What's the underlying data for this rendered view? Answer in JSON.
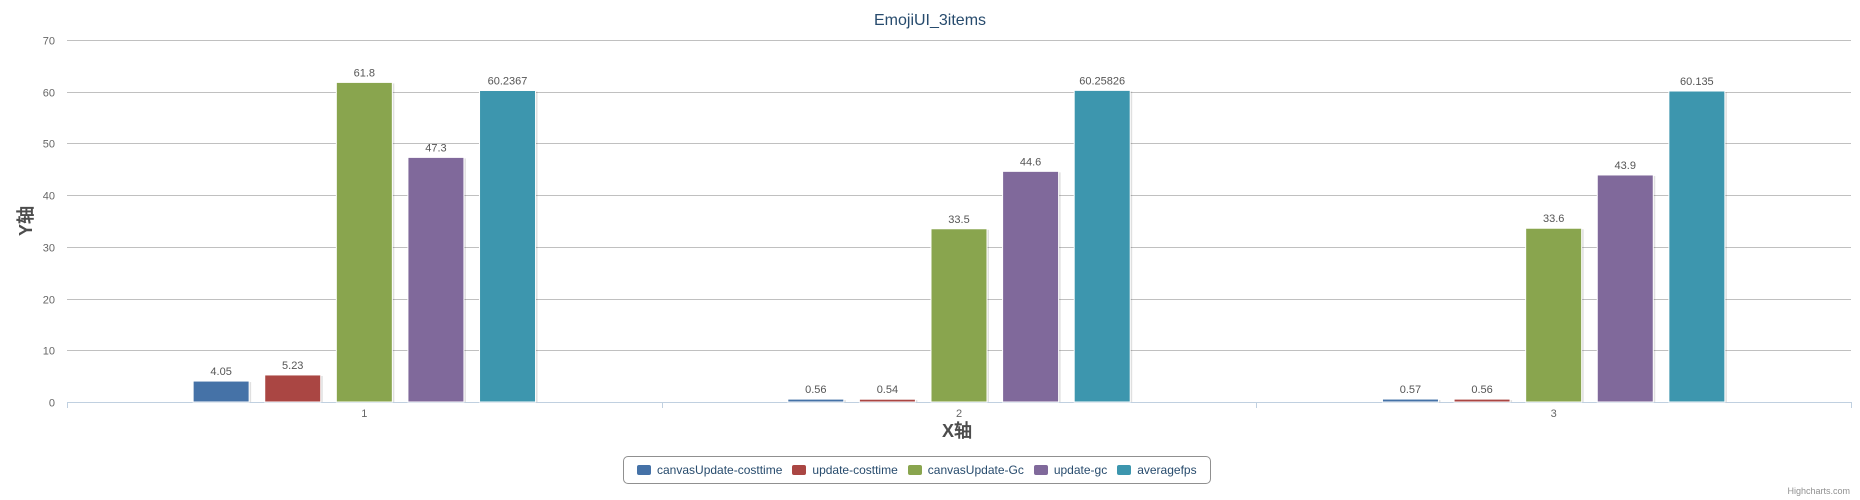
{
  "chart_data": {
    "type": "bar",
    "title": "EmojiUI_3items",
    "xlabel": "X轴",
    "ylabel": "Y轴",
    "categories": [
      "1",
      "2",
      "3"
    ],
    "ylim": [
      0,
      70
    ],
    "yticks": [
      0,
      10,
      20,
      30,
      40,
      50,
      60,
      70
    ],
    "grid": true,
    "legend_position": "bottom-center",
    "series": [
      {
        "name": "canvasUpdate-costtime",
        "color": "#4572a7",
        "values": [
          4.05,
          0.56,
          0.57
        ],
        "labels": [
          "4.05",
          "0.56",
          "0.57"
        ]
      },
      {
        "name": "update-costtime",
        "color": "#aa4643",
        "values": [
          5.23,
          0.54,
          0.56
        ],
        "labels": [
          "5.23",
          "0.54",
          "0.56"
        ]
      },
      {
        "name": "canvasUpdate-Gc",
        "color": "#89a54e",
        "values": [
          61.8,
          33.5,
          33.6
        ],
        "labels": [
          "61.8",
          "33.5",
          "33.6"
        ]
      },
      {
        "name": "update-gc",
        "color": "#80699b",
        "values": [
          47.3,
          44.6,
          43.9
        ],
        "labels": [
          "47.3",
          "44.6",
          "43.9"
        ]
      },
      {
        "name": "averagefps",
        "color": "#3d96ae",
        "values": [
          60.2367,
          60.25826,
          60.135
        ],
        "labels": [
          "60.2367",
          "60.25826",
          "60.135"
        ]
      }
    ]
  },
  "credits": "Highcharts.com"
}
